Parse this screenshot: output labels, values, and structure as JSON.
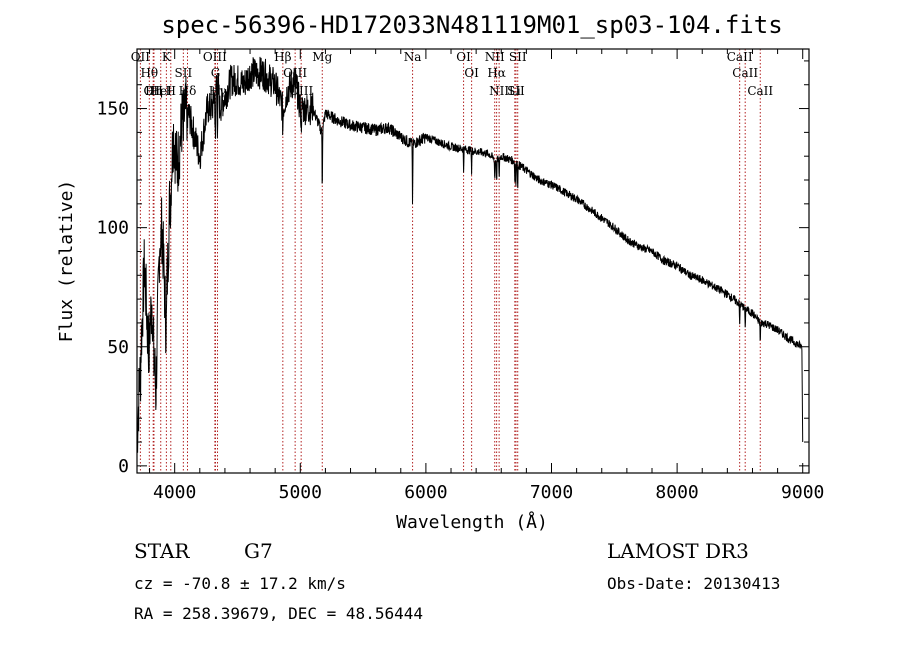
{
  "chart_data": {
    "type": "line",
    "title": "spec-56396-HD172033N481119M01_sp03-104.fits",
    "xlabel": "Wavelength (Å)",
    "ylabel": "Flux (relative)",
    "xlim": [
      3700,
      9050
    ],
    "ylim": [
      -3,
      175
    ],
    "xticks": [
      4000,
      5000,
      6000,
      7000,
      8000,
      9000
    ],
    "yticks": [
      0,
      50,
      100,
      150
    ],
    "spectrum_anchor_points": {
      "wavelength": [
        3700,
        3720,
        3740,
        3760,
        3790,
        3820,
        3850,
        3880,
        3900,
        3930,
        3960,
        3990,
        4020,
        4060,
        4100,
        4150,
        4200,
        4260,
        4300,
        4340,
        4360,
        4400,
        4450,
        4500,
        4550,
        4600,
        4700,
        4800,
        4861,
        4900,
        4960,
        5000,
        5100,
        5172,
        5200,
        5300,
        5400,
        5500,
        5600,
        5700,
        5800,
        5893,
        6000,
        6100,
        6200,
        6300,
        6400,
        6500,
        6563,
        6600,
        6700,
        6800,
        6900,
        7000,
        7100,
        7200,
        7300,
        7400,
        7500,
        7600,
        7700,
        7800,
        7900,
        8000,
        8100,
        8200,
        8300,
        8400,
        8498,
        8542,
        8600,
        8662,
        8700,
        8800,
        8900,
        8990,
        9000
      ],
      "flux": [
        12,
        35,
        60,
        85,
        50,
        70,
        30,
        95,
        100,
        60,
        110,
        140,
        125,
        145,
        150,
        140,
        130,
        150,
        150,
        165,
        150,
        155,
        162,
        162,
        160,
        165,
        165,
        160,
        150,
        158,
        162,
        150,
        150,
        140,
        148,
        145,
        143,
        142,
        141,
        142,
        138,
        135,
        138,
        136,
        134,
        133,
        132,
        131,
        128,
        130,
        128,
        124,
        120,
        118,
        115,
        112,
        108,
        104,
        100,
        95,
        92,
        90,
        86,
        84,
        80,
        78,
        75,
        72,
        68,
        66,
        64,
        60,
        60,
        57,
        53,
        50,
        50
      ]
    },
    "absorption_lines": [
      {
        "name": "OII",
        "wavelength": 3727
      },
      {
        "name": "Hθ",
        "wavelength": 3798
      },
      {
        "name": "OII",
        "wavelength": 3829
      },
      {
        "name": "Hη",
        "wavelength": 3835
      },
      {
        "name": "HeI",
        "wavelength": 3889
      },
      {
        "name": "K",
        "wavelength": 3934
      },
      {
        "name": "H",
        "wavelength": 3969
      },
      {
        "name": "SII",
        "wavelength": 4069
      },
      {
        "name": "Hδ",
        "wavelength": 4102
      },
      {
        "name": "OIII",
        "wavelength": 4320
      },
      {
        "name": "G",
        "wavelength": 4325
      },
      {
        "name": "Hγ",
        "wavelength": 4341
      },
      {
        "name": "Hβ",
        "wavelength": 4861
      },
      {
        "name": "OIII",
        "wavelength": 4959
      },
      {
        "name": "OIII",
        "wavelength": 5007
      },
      {
        "name": "Mg",
        "wavelength": 5175
      },
      {
        "name": "Na",
        "wavelength": 5894
      },
      {
        "name": "OI",
        "wavelength": 6300
      },
      {
        "name": "OI",
        "wavelength": 6364
      },
      {
        "name": "NII",
        "wavelength": 6548
      },
      {
        "name": "Hα",
        "wavelength": 6563
      },
      {
        "name": "NII",
        "wavelength": 6583
      },
      {
        "name": "SII",
        "wavelength": 6717
      },
      {
        "name": "Li",
        "wavelength": 6708
      },
      {
        "name": "SII",
        "wavelength": 6731
      },
      {
        "name": "CaII",
        "wavelength": 8498
      },
      {
        "name": "CaII",
        "wavelength": 8542
      },
      {
        "name": "CaII",
        "wavelength": 8662
      }
    ]
  },
  "info": {
    "object_class": "STAR",
    "subclass": "G7",
    "redshift": "cz = -70.8 ± 17.2 km/s",
    "coords": "RA = 258.39679, DEC =  48.56444",
    "survey": "LAMOST DR3",
    "obs_date": "Obs-Date: 20130413"
  },
  "colors": {
    "spectrum": "#000000",
    "line_markers": "#b22222",
    "axes": "#000000",
    "background": "#ffffff"
  }
}
